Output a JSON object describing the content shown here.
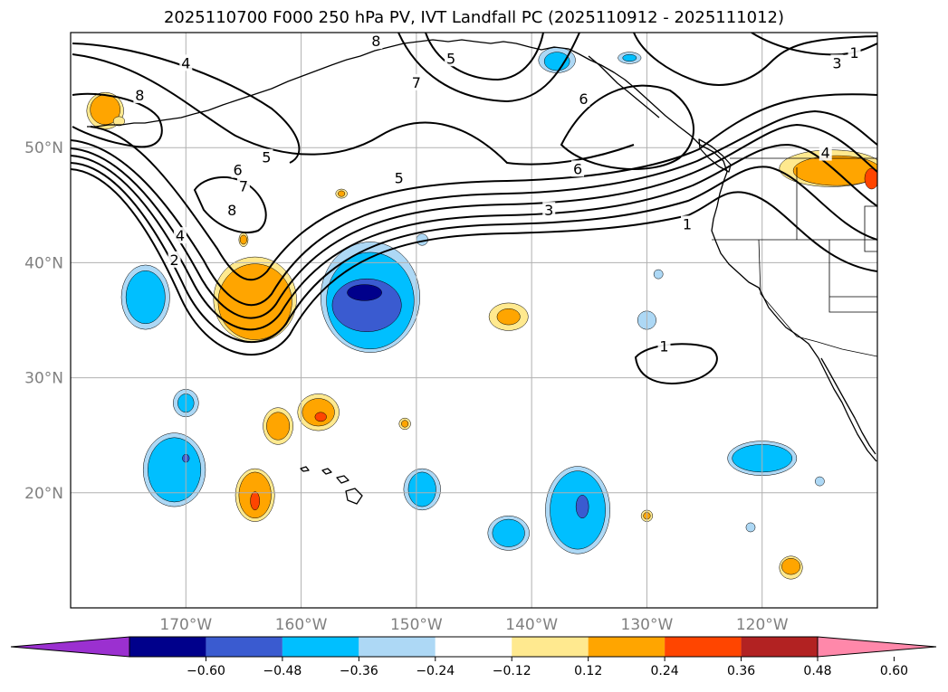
{
  "title": "2025110700 F000 250 hPa PV, IVT Landfall PC (2025110912 - 2025111012)",
  "map": {
    "lon_range": [
      -180,
      -110
    ],
    "lat_range": [
      10,
      60
    ],
    "lon_ticks": [
      {
        "value": -170,
        "label": "170°W"
      },
      {
        "value": -160,
        "label": "160°W"
      },
      {
        "value": -150,
        "label": "150°W"
      },
      {
        "value": -140,
        "label": "140°W"
      },
      {
        "value": -130,
        "label": "130°W"
      },
      {
        "value": -120,
        "label": "120°W"
      }
    ],
    "lat_ticks": [
      {
        "value": 50,
        "label": "50°N"
      },
      {
        "value": 40,
        "label": "40°N"
      },
      {
        "value": 30,
        "label": "30°N"
      },
      {
        "value": 20,
        "label": "20°N"
      }
    ],
    "gridline_color": "#b0b0b0",
    "tick_color": "#808080"
  },
  "pv_contour_labels": [
    {
      "text": "8",
      "lon": -174,
      "lat": 54.5
    },
    {
      "text": "4",
      "lon": -170,
      "lat": 57.3
    },
    {
      "text": "5",
      "lon": -163,
      "lat": 49.1
    },
    {
      "text": "6",
      "lon": -165.5,
      "lat": 48
    },
    {
      "text": "7",
      "lon": -165,
      "lat": 46.6
    },
    {
      "text": "8",
      "lon": -166,
      "lat": 44.5
    },
    {
      "text": "4",
      "lon": -170.5,
      "lat": 42.3
    },
    {
      "text": "2",
      "lon": -171,
      "lat": 40.2
    },
    {
      "text": "5",
      "lon": -151.5,
      "lat": 47.3
    },
    {
      "text": "3",
      "lon": -138.5,
      "lat": 44.5
    },
    {
      "text": "1",
      "lon": -126.5,
      "lat": 43.3
    },
    {
      "text": "6",
      "lon": -136,
      "lat": 48.1
    },
    {
      "text": "5",
      "lon": -147,
      "lat": 57.7
    },
    {
      "text": "7",
      "lon": -150,
      "lat": 55.6
    },
    {
      "text": "6",
      "lon": -135.5,
      "lat": 54.2
    },
    {
      "text": "8",
      "lon": -153.5,
      "lat": 59.2
    },
    {
      "text": "3",
      "lon": -113.5,
      "lat": 57.3
    },
    {
      "text": "1",
      "lon": -112,
      "lat": 58.2
    },
    {
      "text": "4",
      "lon": -114.5,
      "lat": 49.5
    },
    {
      "text": "1",
      "lon": -128.5,
      "lat": 32.7
    }
  ],
  "ivt_pc_regions": [
    {
      "level": "pos_0.12",
      "color": "#ffe98f",
      "lon": -164,
      "lat": 36.8,
      "rlon": 3.6,
      "rlat": 3.7
    },
    {
      "level": "pos_0.24",
      "color": "#ffa500",
      "lon": -164,
      "lat": 36.6,
      "rlon": 3.2,
      "rlat": 3.3
    },
    {
      "level": "pos_0.12",
      "color": "#ffe98f",
      "lon": -177,
      "lat": 53.2,
      "rlon": 1.6,
      "rlat": 1.6
    },
    {
      "level": "pos_0.24",
      "color": "#ffa500",
      "lon": -177,
      "lat": 53.3,
      "rlon": 1.3,
      "rlat": 1.3
    },
    {
      "level": "pos_0.12",
      "color": "#ffe98f",
      "lon": -114,
      "lat": 48.2,
      "rlon": 4.5,
      "rlat": 1.6
    },
    {
      "level": "pos_0.24",
      "color": "#ffa500",
      "lon": -113.5,
      "lat": 48.0,
      "rlon": 3.8,
      "rlat": 1.3
    },
    {
      "level": "pos_0.36",
      "color": "#ff4500",
      "lon": -110.5,
      "lat": 47.3,
      "rlon": 0.6,
      "rlat": 0.9
    },
    {
      "level": "pos_0.12",
      "color": "#ffe98f",
      "lon": -142,
      "lat": 35.3,
      "rlon": 1.7,
      "rlat": 1.2
    },
    {
      "level": "pos_0.24",
      "color": "#ffa500",
      "lon": -142,
      "lat": 35.3,
      "rlon": 1.0,
      "rlat": 0.7
    },
    {
      "level": "pos_0.12",
      "color": "#ffe98f",
      "lon": -158.5,
      "lat": 27,
      "rlon": 1.8,
      "rlat": 1.6
    },
    {
      "level": "pos_0.24",
      "color": "#ffa500",
      "lon": -158.5,
      "lat": 27,
      "rlon": 1.4,
      "rlat": 1.2
    },
    {
      "level": "pos_0.36",
      "color": "#ff4500",
      "lon": -158.3,
      "lat": 26.6,
      "rlon": 0.5,
      "rlat": 0.4
    },
    {
      "level": "pos_0.12",
      "color": "#ffe98f",
      "lon": -162,
      "lat": 25.8,
      "rlon": 1.3,
      "rlat": 1.6
    },
    {
      "level": "pos_0.24",
      "color": "#ffa500",
      "lon": -162,
      "lat": 25.8,
      "rlon": 1.0,
      "rlat": 1.2
    },
    {
      "level": "pos_0.12",
      "color": "#ffe98f",
      "lon": -164,
      "lat": 19.8,
      "rlon": 1.7,
      "rlat": 2.3
    },
    {
      "level": "pos_0.24",
      "color": "#ffa500",
      "lon": -164,
      "lat": 19.8,
      "rlon": 1.4,
      "rlat": 2.0
    },
    {
      "level": "pos_0.36",
      "color": "#ff4500",
      "lon": -164,
      "lat": 19.3,
      "rlon": 0.4,
      "rlat": 0.8
    },
    {
      "level": "pos_0.12",
      "color": "#ffe98f",
      "lon": -117.5,
      "lat": 13.5,
      "rlon": 1.0,
      "rlat": 1.0
    },
    {
      "level": "pos_0.24",
      "color": "#ffa500",
      "lon": -117.5,
      "lat": 13.6,
      "rlon": 0.8,
      "rlat": 0.7
    },
    {
      "level": "pos_0.12",
      "color": "#ffe98f",
      "lon": -130,
      "lat": 18,
      "rlon": 0.5,
      "rlat": 0.5
    },
    {
      "level": "pos_0.24",
      "color": "#ffa500",
      "lon": -130,
      "lat": 18,
      "rlon": 0.3,
      "rlat": 0.3
    },
    {
      "level": "pos_0.12",
      "color": "#ffe98f",
      "lon": -151,
      "lat": 26,
      "rlon": 0.5,
      "rlat": 0.5
    },
    {
      "level": "pos_0.24",
      "color": "#ffa500",
      "lon": -151,
      "lat": 26,
      "rlon": 0.3,
      "rlat": 0.3
    },
    {
      "level": "pos_0.12",
      "color": "#ffe98f",
      "lon": -165,
      "lat": 42,
      "rlon": 0.4,
      "rlat": 0.6
    },
    {
      "level": "pos_0.24",
      "color": "#ffa500",
      "lon": -165,
      "lat": 42,
      "rlon": 0.3,
      "rlat": 0.4
    },
    {
      "level": "pos_0.12",
      "color": "#ffe98f",
      "lon": -156.5,
      "lat": 46,
      "rlon": 0.5,
      "rlat": 0.4
    },
    {
      "level": "pos_0.24",
      "color": "#ffa500",
      "lon": -156.5,
      "lat": 46,
      "rlon": 0.3,
      "rlat": 0.25
    },
    {
      "level": "pos_0.12",
      "color": "#ffe98f",
      "lon": -175.8,
      "lat": 52.3,
      "rlon": 0.5,
      "rlat": 0.4
    },
    {
      "level": "neg_0.12",
      "color": "#add8f5",
      "lon": -154,
      "lat": 37,
      "rlon": 4.3,
      "rlat": 4.8
    },
    {
      "level": "neg_0.24",
      "color": "#00bfff",
      "lon": -154,
      "lat": 36.7,
      "rlon": 3.8,
      "rlat": 4.2
    },
    {
      "level": "neg_0.36",
      "color": "#3a5bd0",
      "lon": -154.3,
      "lat": 36.3,
      "rlon": 3.0,
      "rlat": 2.3
    },
    {
      "level": "neg_0.48",
      "color": "#00008b",
      "lon": -154.5,
      "lat": 37.4,
      "rlon": 1.5,
      "rlat": 0.7
    },
    {
      "level": "neg_0.12",
      "color": "#add8f5",
      "lon": -173.5,
      "lat": 37,
      "rlon": 2.1,
      "rlat": 2.8
    },
    {
      "level": "neg_0.24",
      "color": "#00bfff",
      "lon": -173.5,
      "lat": 37,
      "rlon": 1.7,
      "rlat": 2.3
    },
    {
      "level": "neg_0.12",
      "color": "#add8f5",
      "lon": -171,
      "lat": 22,
      "rlon": 2.7,
      "rlat": 3.2
    },
    {
      "level": "neg_0.24",
      "color": "#00bfff",
      "lon": -171,
      "lat": 22,
      "rlon": 2.3,
      "rlat": 2.8
    },
    {
      "level": "neg_0.36",
      "color": "#3a5bd0",
      "lon": -170,
      "lat": 23,
      "rlon": 0.3,
      "rlat": 0.35
    },
    {
      "level": "neg_0.12",
      "color": "#add8f5",
      "lon": -170,
      "lat": 27.8,
      "rlon": 1.1,
      "rlat": 1.2
    },
    {
      "level": "neg_0.24",
      "color": "#00bfff",
      "lon": -170,
      "lat": 27.8,
      "rlon": 0.7,
      "rlat": 0.8
    },
    {
      "level": "neg_0.12",
      "color": "#add8f5",
      "lon": -136,
      "lat": 18.5,
      "rlon": 2.8,
      "rlat": 3.8
    },
    {
      "level": "neg_0.24",
      "color": "#00bfff",
      "lon": -136,
      "lat": 18.5,
      "rlon": 2.4,
      "rlat": 3.4
    },
    {
      "level": "neg_0.36",
      "color": "#3a5bd0",
      "lon": -135.6,
      "lat": 18.8,
      "rlon": 0.55,
      "rlat": 1.0
    },
    {
      "level": "neg_0.12",
      "color": "#add8f5",
      "lon": -120,
      "lat": 23,
      "rlon": 3.0,
      "rlat": 1.5
    },
    {
      "level": "neg_0.24",
      "color": "#00bfff",
      "lon": -120,
      "lat": 23,
      "rlon": 2.6,
      "rlat": 1.2
    },
    {
      "level": "neg_0.12",
      "color": "#add8f5",
      "lon": -149.5,
      "lat": 20.3,
      "rlon": 1.6,
      "rlat": 1.8
    },
    {
      "level": "neg_0.24",
      "color": "#00bfff",
      "lon": -149.5,
      "lat": 20.3,
      "rlon": 1.2,
      "rlat": 1.5
    },
    {
      "level": "neg_0.12",
      "color": "#add8f5",
      "lon": -142,
      "lat": 16.5,
      "rlon": 1.8,
      "rlat": 1.5
    },
    {
      "level": "neg_0.24",
      "color": "#00bfff",
      "lon": -142,
      "lat": 16.5,
      "rlon": 1.4,
      "rlat": 1.2
    },
    {
      "level": "neg_0.12",
      "color": "#add8f5",
      "lon": -137.8,
      "lat": 57.6,
      "rlon": 1.6,
      "rlat": 1.1
    },
    {
      "level": "neg_0.24",
      "color": "#00bfff",
      "lon": -137.8,
      "lat": 57.5,
      "rlon": 1.1,
      "rlat": 0.8
    },
    {
      "level": "neg_0.12",
      "color": "#add8f5",
      "lon": -131.5,
      "lat": 57.8,
      "rlon": 1.0,
      "rlat": 0.5
    },
    {
      "level": "neg_0.24",
      "color": "#00bfff",
      "lon": -131.5,
      "lat": 57.8,
      "rlon": 0.6,
      "rlat": 0.3
    },
    {
      "level": "neg_0.12",
      "color": "#add8f5",
      "lon": -149.5,
      "lat": 42,
      "rlon": 0.5,
      "rlat": 0.5
    },
    {
      "level": "neg_0.12",
      "color": "#add8f5",
      "lon": -130,
      "lat": 35,
      "rlon": 0.8,
      "rlat": 0.8
    },
    {
      "level": "neg_0.12",
      "color": "#add8f5",
      "lon": -129,
      "lat": 39,
      "rlon": 0.4,
      "rlat": 0.4
    },
    {
      "level": "neg_0.12",
      "color": "#add8f5",
      "lon": -121,
      "lat": 17,
      "rlon": 0.4,
      "rlat": 0.4
    },
    {
      "level": "neg_0.12",
      "color": "#add8f5",
      "lon": -115,
      "lat": 21,
      "rlon": 0.4,
      "rlat": 0.4
    }
  ],
  "colorbar": {
    "colors": [
      "#9b30d0",
      "#00008b",
      "#3a5bd0",
      "#00bfff",
      "#add8f5",
      "#ffffff",
      "#ffe98f",
      "#ffa500",
      "#ff4500",
      "#b22222",
      "#ff88aa"
    ],
    "tick_labels": [
      "−0.60",
      "−0.48",
      "−0.36",
      "−0.24",
      "−0.12",
      "0.12",
      "0.24",
      "0.36",
      "0.48",
      "0.60"
    ]
  }
}
